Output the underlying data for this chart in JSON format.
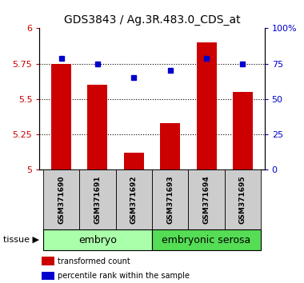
{
  "title": "GDS3843 / Ag.3R.483.0_CDS_at",
  "samples": [
    "GSM371690",
    "GSM371691",
    "GSM371692",
    "GSM371693",
    "GSM371694",
    "GSM371695"
  ],
  "bar_values": [
    5.75,
    5.6,
    5.12,
    5.33,
    5.9,
    5.55
  ],
  "percentile_values": [
    79,
    75,
    65,
    70,
    79,
    75
  ],
  "bar_color": "#cc0000",
  "marker_color": "#0000cc",
  "ylim_left": [
    5.0,
    6.0
  ],
  "ylim_right": [
    0,
    100
  ],
  "yticks_left": [
    5.0,
    5.25,
    5.5,
    5.75,
    6.0
  ],
  "ytick_labels_left": [
    "5",
    "5.25",
    "5.5",
    "5.75",
    "6"
  ],
  "yticks_right": [
    0,
    25,
    50,
    75,
    100
  ],
  "ytick_labels_right": [
    "0",
    "25",
    "50",
    "75",
    "100%"
  ],
  "dotted_lines": [
    5.25,
    5.5,
    5.75
  ],
  "groups": [
    {
      "label": "embryo",
      "indices": [
        0,
        1,
        2
      ],
      "color": "#aaffaa"
    },
    {
      "label": "embryonic serosa",
      "indices": [
        3,
        4,
        5
      ],
      "color": "#55dd55"
    }
  ],
  "tissue_label": "tissue",
  "legend_bar_label": "transformed count",
  "legend_marker_label": "percentile rank within the sample",
  "bar_width": 0.55,
  "title_fontsize": 10,
  "tick_fontsize": 8,
  "sample_fontsize": 6.5,
  "group_fontsize": 9
}
